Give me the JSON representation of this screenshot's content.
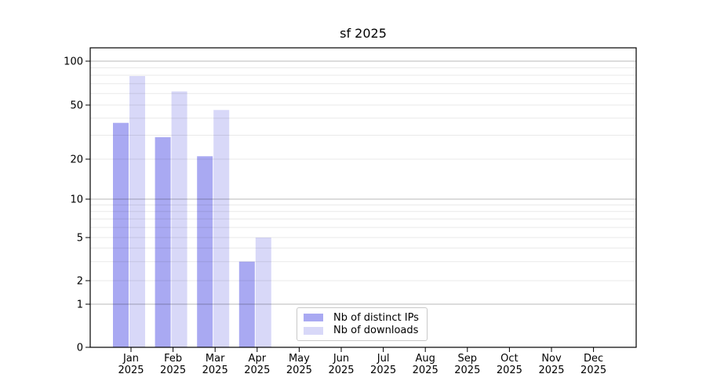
{
  "chart_data": {
    "type": "bar",
    "title": "sf 2025",
    "categories": [
      "Jan 2025",
      "Feb 2025",
      "Mar 2025",
      "Apr 2025",
      "May 2025",
      "Jun 2025",
      "Jul 2025",
      "Aug 2025",
      "Sep 2025",
      "Oct 2025",
      "Nov 2025",
      "Dec 2025"
    ],
    "series": [
      {
        "name": "Nb of distinct IPs",
        "color": "#a9a9f2",
        "values": [
          37,
          29,
          21,
          3,
          0,
          0,
          0,
          0,
          0,
          0,
          0,
          0
        ]
      },
      {
        "name": "Nb of downloads",
        "color": "#d8d8f8",
        "values": [
          79,
          62,
          46,
          5,
          0,
          0,
          0,
          0,
          0,
          0,
          0,
          0
        ]
      }
    ],
    "yticks": [
      0,
      1,
      2,
      5,
      10,
      20,
      50,
      100
    ],
    "ylim": [
      0,
      123
    ],
    "xlabel": "",
    "ylabel": "",
    "yscale": "symlog",
    "grid": "horizontal, major and minor",
    "legend_position": "lower center"
  }
}
